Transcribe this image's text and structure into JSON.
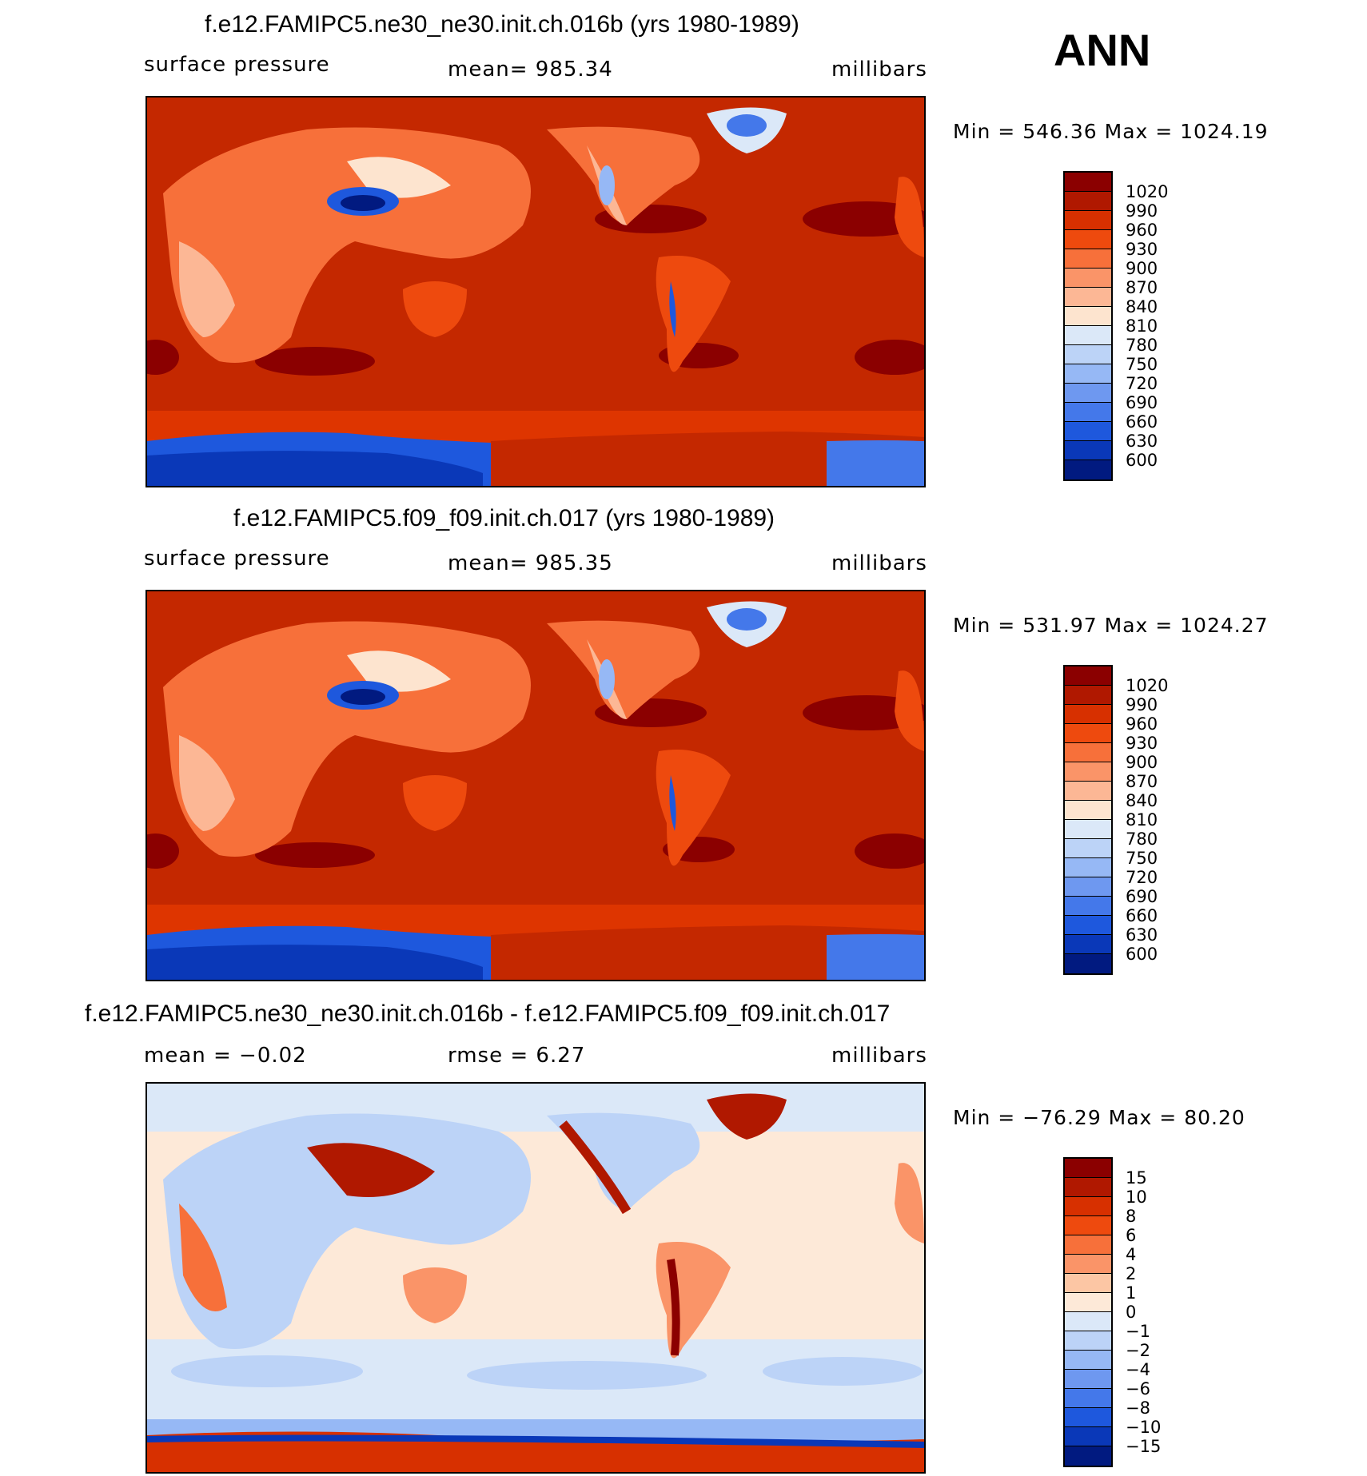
{
  "season": "ANN",
  "panels": [
    {
      "title": "f.e12.FAMIPC5.ne30_ne30.init.ch.016b (yrs 1980-1989)",
      "left_label": "surface pressure",
      "center_label": "mean= 985.34",
      "units": "millibars",
      "minmax": "Min = 546.36 Max = 1024.19",
      "colorbar_levels": [
        "1020",
        "990",
        "960",
        "930",
        "900",
        "870",
        "840",
        "810",
        "780",
        "750",
        "720",
        "690",
        "660",
        "630",
        "600"
      ],
      "colorbar_colors": [
        "#8b0000",
        "#b01800",
        "#d73000",
        "#ee4a0e",
        "#f7703a",
        "#fa9468",
        "#fcb795",
        "#fde4cf",
        "#dbe8f8",
        "#bcd3f7",
        "#96b8f5",
        "#6e98f0",
        "#4478ea",
        "#1e58dd",
        "#0a38b8",
        "#011a80"
      ]
    },
    {
      "title": "f.e12.FAMIPC5.f09_f09.init.ch.017 (yrs 1980-1989)",
      "left_label": "surface pressure",
      "center_label": "mean= 985.35",
      "units": "millibars",
      "minmax": "Min = 531.97 Max = 1024.27",
      "colorbar_levels": [
        "1020",
        "990",
        "960",
        "930",
        "900",
        "870",
        "840",
        "810",
        "780",
        "750",
        "720",
        "690",
        "660",
        "630",
        "600"
      ],
      "colorbar_colors": [
        "#8b0000",
        "#b01800",
        "#d73000",
        "#ee4a0e",
        "#f7703a",
        "#fa9468",
        "#fcb795",
        "#fde4cf",
        "#dbe8f8",
        "#bcd3f7",
        "#96b8f5",
        "#6e98f0",
        "#4478ea",
        "#1e58dd",
        "#0a38b8",
        "#011a80"
      ]
    },
    {
      "title": "f.e12.FAMIPC5.ne30_ne30.init.ch.016b - f.e12.FAMIPC5.f09_f09.init.ch.017",
      "left_label": "mean =   −0.02",
      "center_label": "rmse =     6.27",
      "units": "millibars",
      "minmax": "Min = −76.29 Max =   80.20",
      "colorbar_levels": [
        "15",
        "10",
        "8",
        "6",
        "4",
        "2",
        "1",
        "0",
        "−1",
        "−2",
        "−4",
        "−6",
        "−8",
        "−10",
        "−15"
      ],
      "colorbar_colors": [
        "#8b0000",
        "#b01800",
        "#d73000",
        "#ee4a0e",
        "#f7703a",
        "#fa9468",
        "#fcc6a4",
        "#fde9d8",
        "#dbe8f8",
        "#bcd3f7",
        "#96b8f5",
        "#6e98f0",
        "#4478ea",
        "#1e58dd",
        "#0a38b8",
        "#011a80"
      ]
    }
  ]
}
